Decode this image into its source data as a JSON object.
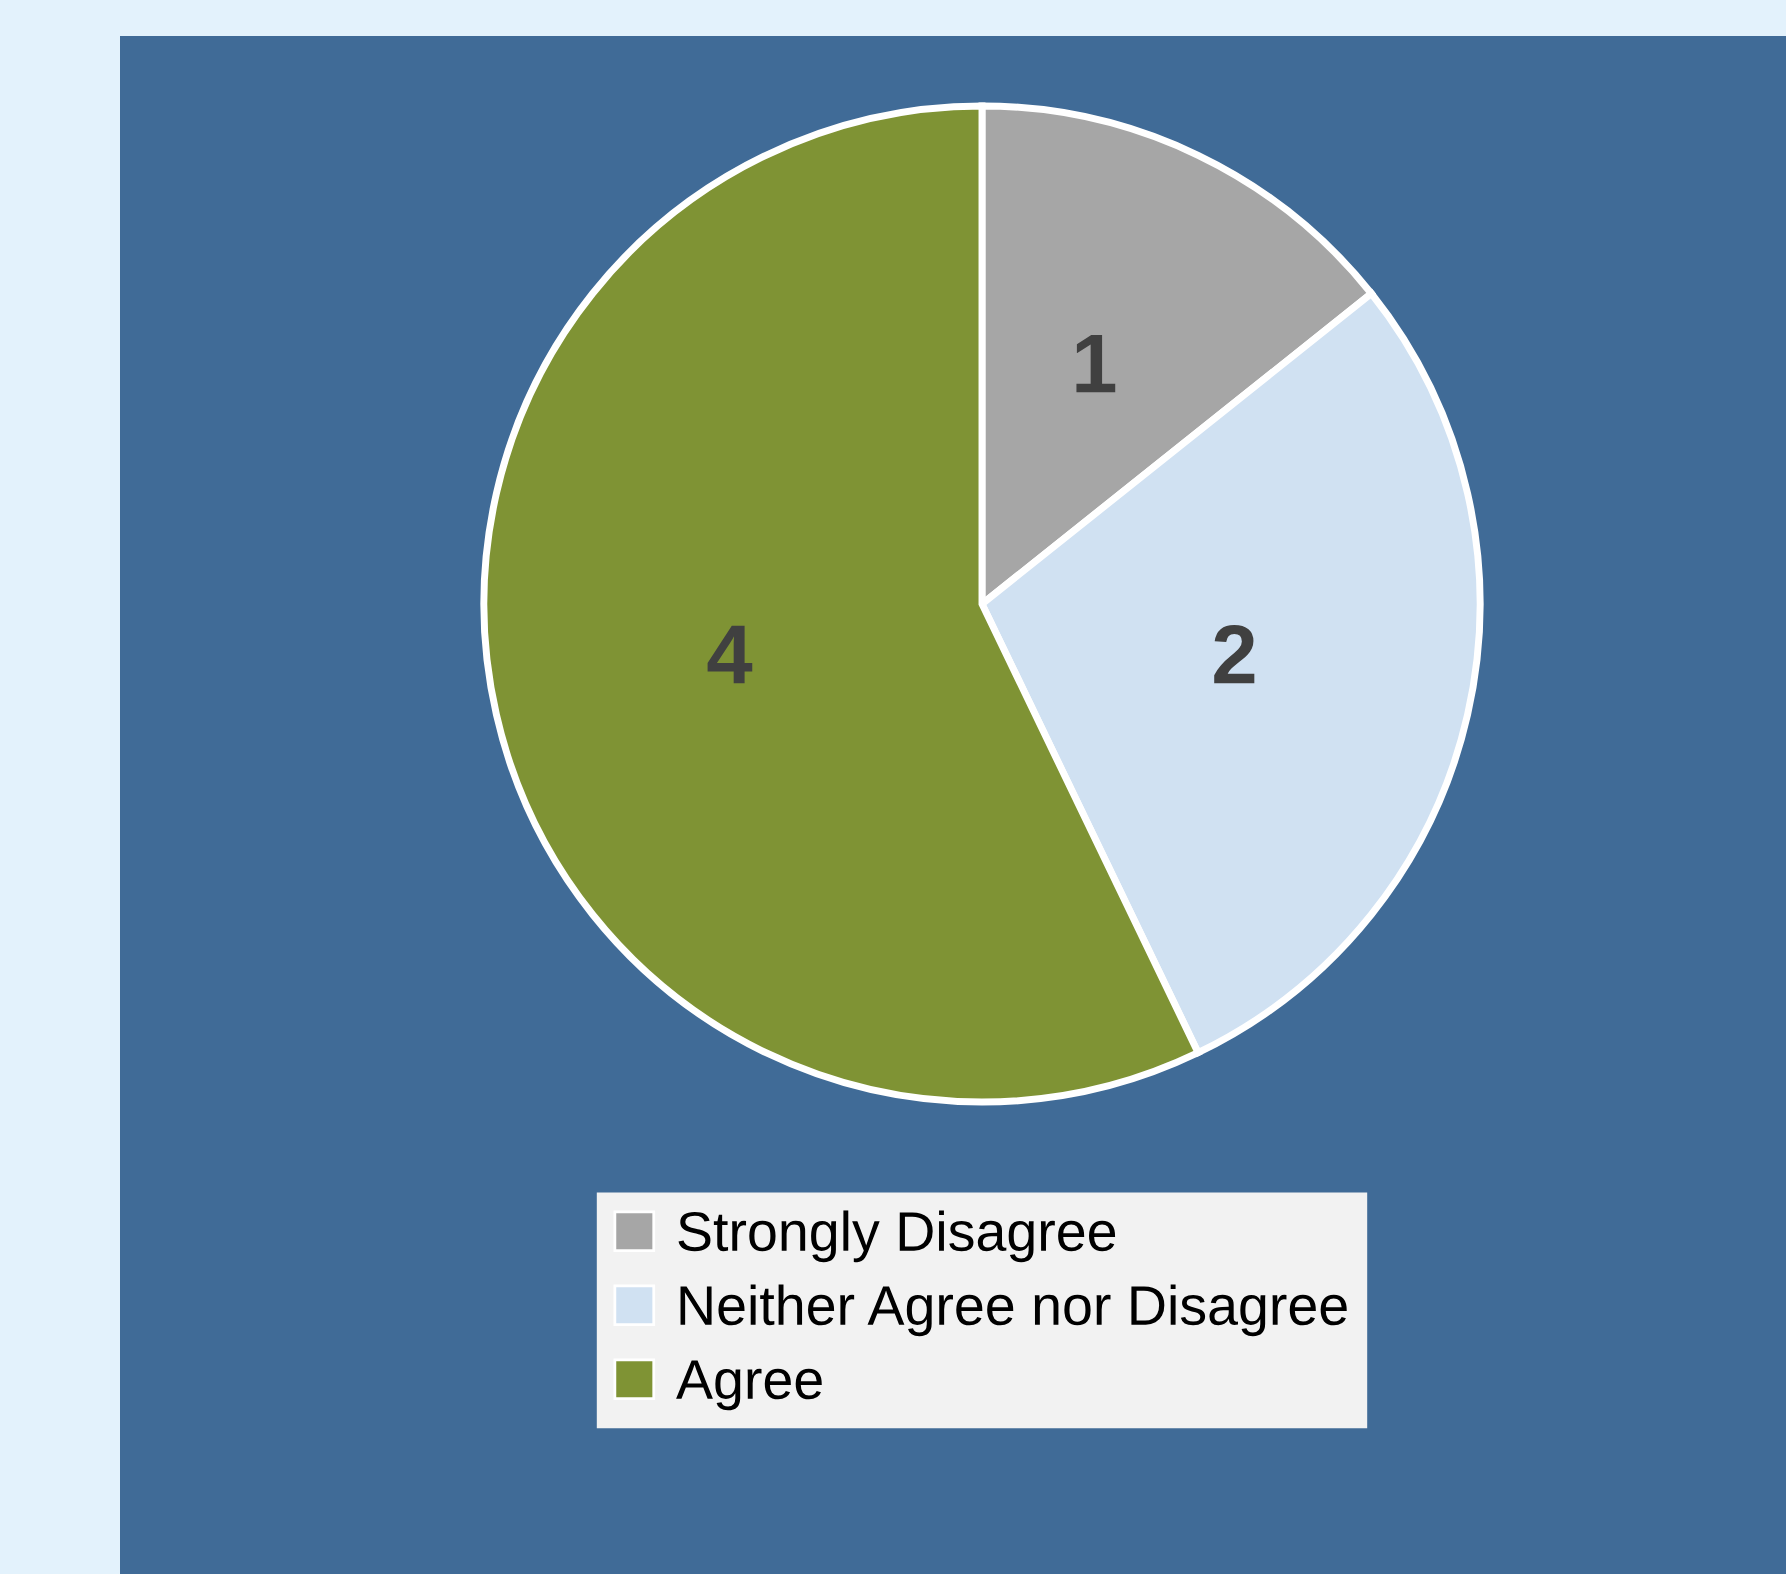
{
  "chart_data": {
    "type": "pie",
    "categories": [
      "Strongly Disagree",
      "Neither Agree nor Disagree",
      "Agree"
    ],
    "values": [
      1,
      2,
      4
    ],
    "colors": [
      "#a6a6a6",
      "#d0e1f2",
      "#7f9334"
    ],
    "data_labels": true,
    "legend": "bottom"
  }
}
